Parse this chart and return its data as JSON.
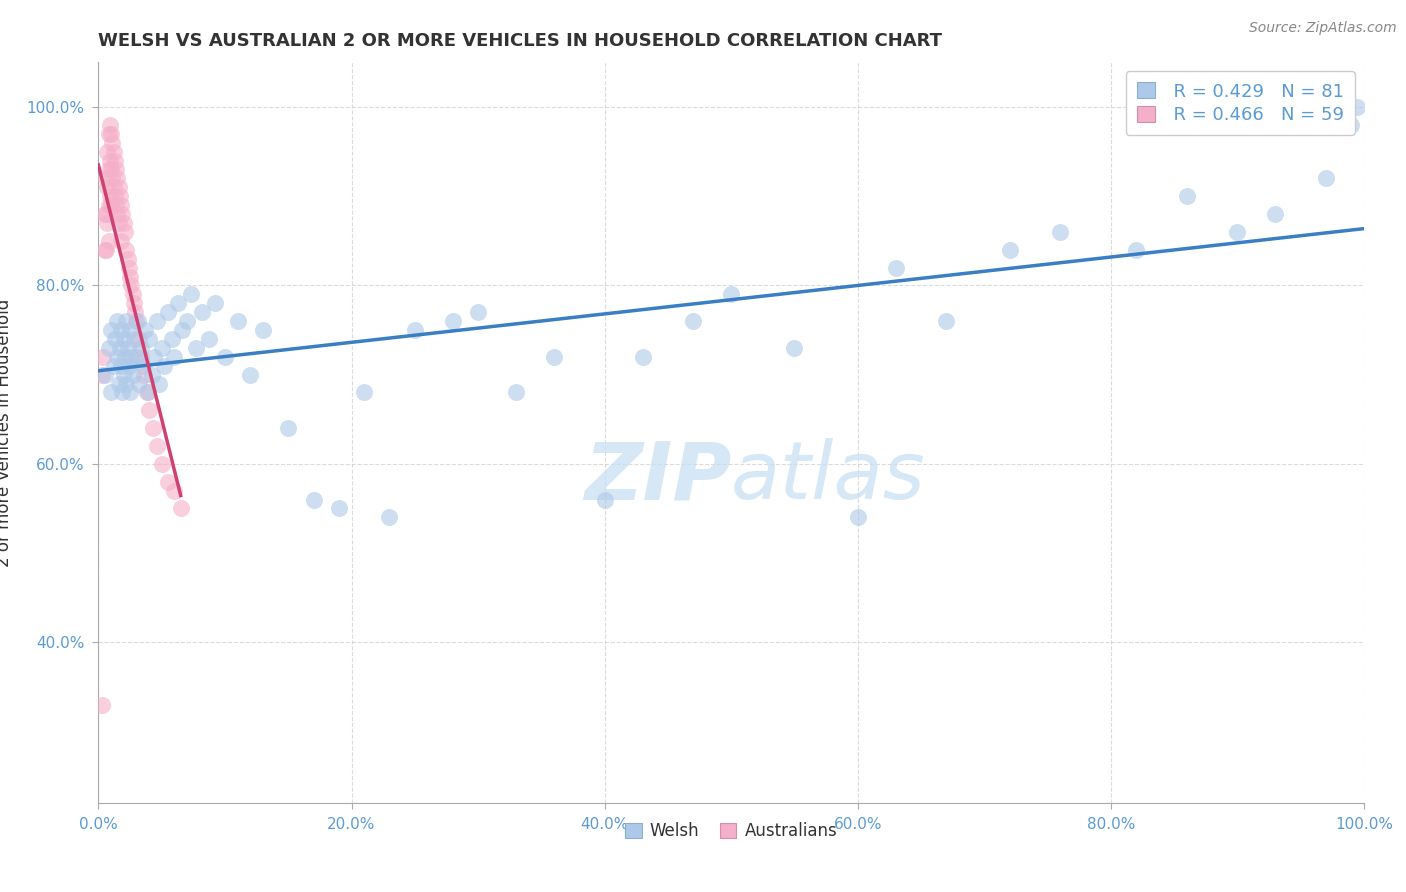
{
  "title": "WELSH VS AUSTRALIAN 2 OR MORE VEHICLES IN HOUSEHOLD CORRELATION CHART",
  "source": "Source: ZipAtlas.com",
  "ylabel": "2 or more Vehicles in Household",
  "watermark_zip": "ZIP",
  "watermark_atlas": "atlas",
  "welsh_R": 0.429,
  "welsh_N": 81,
  "aus_R": 0.466,
  "aus_N": 59,
  "welsh_fill": "#adc8e8",
  "aus_fill": "#f5afc8",
  "welsh_line": "#3a7ec4",
  "aus_line": "#d04070",
  "bg_color": "#ffffff",
  "grid_color": "#cccccc",
  "tick_color": "#5b9bd5",
  "text_color": "#333333",
  "source_color": "#888888",
  "watermark_color": "#c5dff2",
  "xlim": [
    0.0,
    1.0
  ],
  "ylim": [
    0.22,
    1.05
  ],
  "xticks": [
    0.0,
    0.2,
    0.4,
    0.6,
    0.8,
    1.0
  ],
  "yticks": [
    0.4,
    0.6,
    0.8,
    1.0
  ],
  "xticklabels": [
    "0.0%",
    "20.0%",
    "40.0%",
    "60.0%",
    "80.0%",
    "100.0%"
  ],
  "yticklabels": [
    "40.0%",
    "60.0%",
    "80.0%",
    "100.0%"
  ],
  "welsh_x": [
    0.005,
    0.008,
    0.01,
    0.01,
    0.012,
    0.013,
    0.015,
    0.015,
    0.016,
    0.017,
    0.018,
    0.018,
    0.019,
    0.02,
    0.02,
    0.021,
    0.022,
    0.022,
    0.023,
    0.024,
    0.025,
    0.025,
    0.026,
    0.027,
    0.028,
    0.03,
    0.031,
    0.032,
    0.034,
    0.035,
    0.037,
    0.039,
    0.04,
    0.042,
    0.044,
    0.046,
    0.048,
    0.05,
    0.052,
    0.055,
    0.058,
    0.06,
    0.063,
    0.066,
    0.07,
    0.073,
    0.077,
    0.082,
    0.087,
    0.092,
    0.1,
    0.11,
    0.12,
    0.13,
    0.15,
    0.17,
    0.19,
    0.21,
    0.23,
    0.25,
    0.28,
    0.3,
    0.33,
    0.36,
    0.4,
    0.43,
    0.47,
    0.5,
    0.55,
    0.6,
    0.63,
    0.67,
    0.72,
    0.76,
    0.82,
    0.86,
    0.9,
    0.93,
    0.97,
    0.99,
    0.995
  ],
  "welsh_y": [
    0.7,
    0.73,
    0.68,
    0.75,
    0.71,
    0.74,
    0.72,
    0.76,
    0.69,
    0.73,
    0.71,
    0.75,
    0.68,
    0.74,
    0.7,
    0.72,
    0.76,
    0.69,
    0.73,
    0.71,
    0.75,
    0.68,
    0.72,
    0.7,
    0.74,
    0.72,
    0.76,
    0.69,
    0.73,
    0.71,
    0.75,
    0.68,
    0.74,
    0.7,
    0.72,
    0.76,
    0.69,
    0.73,
    0.71,
    0.77,
    0.74,
    0.72,
    0.78,
    0.75,
    0.76,
    0.79,
    0.73,
    0.77,
    0.74,
    0.78,
    0.72,
    0.76,
    0.7,
    0.75,
    0.64,
    0.56,
    0.55,
    0.68,
    0.54,
    0.75,
    0.76,
    0.77,
    0.68,
    0.72,
    0.56,
    0.72,
    0.76,
    0.79,
    0.73,
    0.54,
    0.82,
    0.76,
    0.84,
    0.86,
    0.84,
    0.9,
    0.86,
    0.88,
    0.92,
    0.98,
    1.0
  ],
  "aus_x": [
    0.003,
    0.004,
    0.005,
    0.005,
    0.006,
    0.006,
    0.006,
    0.007,
    0.007,
    0.007,
    0.008,
    0.008,
    0.008,
    0.008,
    0.009,
    0.009,
    0.009,
    0.01,
    0.01,
    0.01,
    0.011,
    0.011,
    0.012,
    0.012,
    0.013,
    0.013,
    0.014,
    0.014,
    0.015,
    0.015,
    0.016,
    0.016,
    0.017,
    0.018,
    0.018,
    0.019,
    0.02,
    0.021,
    0.022,
    0.023,
    0.024,
    0.025,
    0.026,
    0.027,
    0.028,
    0.029,
    0.03,
    0.032,
    0.034,
    0.036,
    0.038,
    0.04,
    0.043,
    0.046,
    0.05,
    0.055,
    0.06,
    0.065,
    0.003
  ],
  "aus_y": [
    0.7,
    0.72,
    0.88,
    0.84,
    0.92,
    0.88,
    0.84,
    0.95,
    0.91,
    0.87,
    0.97,
    0.93,
    0.89,
    0.85,
    0.98,
    0.94,
    0.9,
    0.97,
    0.93,
    0.89,
    0.96,
    0.92,
    0.95,
    0.91,
    0.94,
    0.9,
    0.93,
    0.89,
    0.92,
    0.88,
    0.91,
    0.87,
    0.9,
    0.89,
    0.85,
    0.88,
    0.87,
    0.86,
    0.84,
    0.83,
    0.82,
    0.81,
    0.8,
    0.79,
    0.78,
    0.77,
    0.76,
    0.74,
    0.72,
    0.7,
    0.68,
    0.66,
    0.64,
    0.62,
    0.6,
    0.58,
    0.57,
    0.55,
    0.33
  ]
}
